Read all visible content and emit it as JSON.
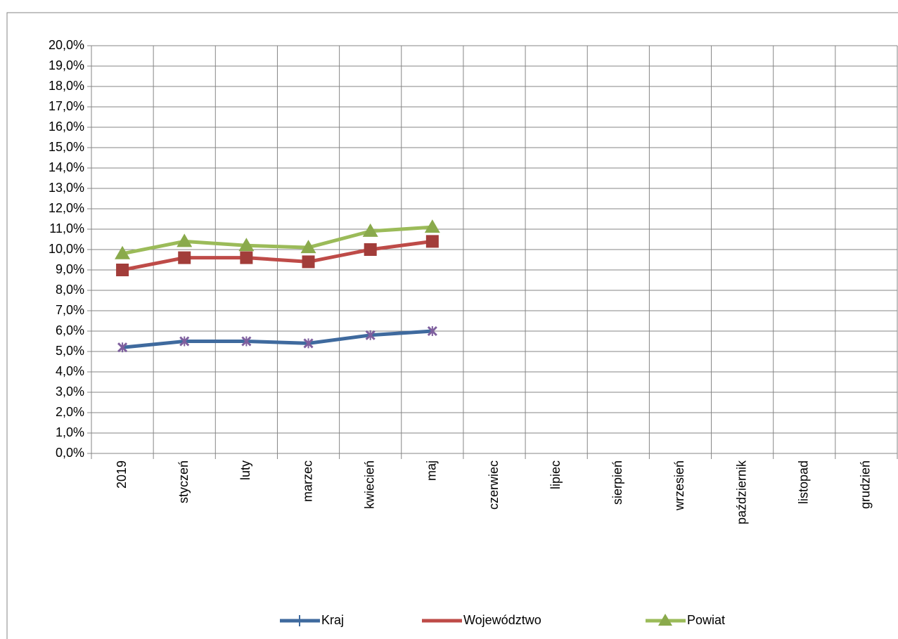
{
  "chart_data": {
    "type": "line",
    "categories": [
      "2019",
      "styczeń",
      "luty",
      "marzec",
      "kwiecień",
      "maj",
      "czerwiec",
      "lipiec",
      "sierpień",
      "wrzesień",
      "październik",
      "listopad",
      "grudzień"
    ],
    "series": [
      {
        "name": "Kraj",
        "color": "#3f6a9e",
        "marker_color": "#7e5f9e",
        "values": [
          5.2,
          5.5,
          5.5,
          5.4,
          5.8,
          6.0,
          null,
          null,
          null,
          null,
          null,
          null,
          null
        ]
      },
      {
        "name": "Województwo",
        "color": "#be4b48",
        "marker_color": "#a23d3a",
        "values": [
          9.0,
          9.6,
          9.6,
          9.4,
          10.0,
          10.4,
          null,
          null,
          null,
          null,
          null,
          null,
          null
        ]
      },
      {
        "name": "Powiat",
        "color": "#9bbb59",
        "marker_color": "#8aaa4c",
        "values": [
          9.8,
          10.4,
          10.2,
          10.1,
          10.9,
          11.1,
          null,
          null,
          null,
          null,
          null,
          null,
          null
        ]
      }
    ],
    "ylim": [
      0,
      20
    ],
    "yticks": [
      {
        "value": 0,
        "label": "0,0%"
      },
      {
        "value": 1,
        "label": "1,0%"
      },
      {
        "value": 2,
        "label": "2,0%"
      },
      {
        "value": 3,
        "label": "3,0%"
      },
      {
        "value": 4,
        "label": "4,0%"
      },
      {
        "value": 5,
        "label": "5,0%"
      },
      {
        "value": 6,
        "label": "6,0%"
      },
      {
        "value": 7,
        "label": "7,0%"
      },
      {
        "value": 8,
        "label": "8,0%"
      },
      {
        "value": 9,
        "label": "9,0%"
      },
      {
        "value": 10,
        "label": "10,0%"
      },
      {
        "value": 11,
        "label": "11,0%"
      },
      {
        "value": 12,
        "label": "12,0%"
      },
      {
        "value": 13,
        "label": "13,0%"
      },
      {
        "value": 14,
        "label": "14,0%"
      },
      {
        "value": 15,
        "label": "15,0%"
      },
      {
        "value": 16,
        "label": "16,0%"
      },
      {
        "value": 17,
        "label": "17,0%"
      },
      {
        "value": 18,
        "label": "18,0%"
      },
      {
        "value": 19,
        "label": "19,0%"
      },
      {
        "value": 20,
        "label": "20,0%"
      }
    ],
    "grid": true,
    "legend": "bottom"
  }
}
